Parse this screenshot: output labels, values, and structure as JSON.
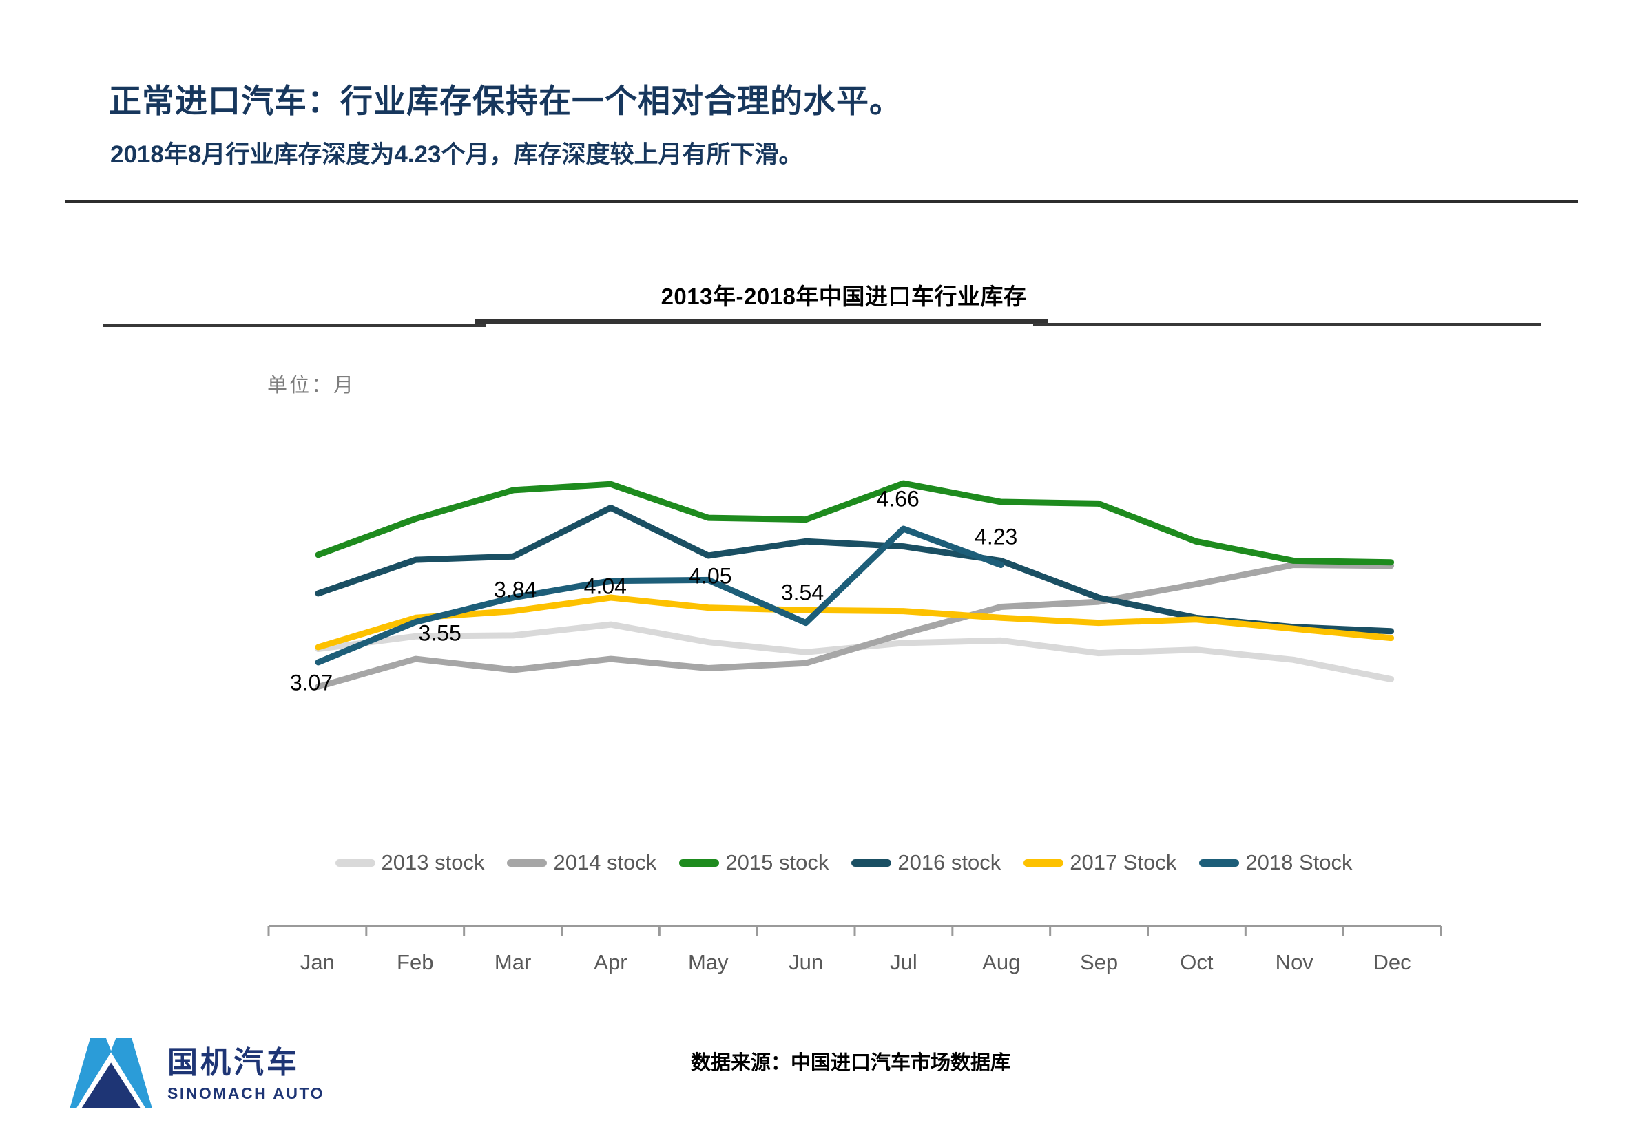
{
  "header": {
    "title": "正常进口汽车：行业库存保持在一个相对合理的水平。",
    "subtitle": "2018年8月行业库存深度为4.23个月，库存深度较上月有所下滑。"
  },
  "chart_data": {
    "type": "line",
    "title": "2013年-2018年中国进口车行业库存",
    "unit_label": "单位：月",
    "ylabel": "月",
    "ylim": [
      2.5,
      5.5
    ],
    "grid": false,
    "legend_position": "bottom",
    "categories": [
      "Jan",
      "Feb",
      "Mar",
      "Apr",
      "May",
      "Jun",
      "Jul",
      "Aug",
      "Sep",
      "Oct",
      "Nov",
      "Dec"
    ],
    "series": [
      {
        "name": "2013 stock",
        "color": "#d9d9d9",
        "values": [
          3.23,
          3.38,
          3.39,
          3.52,
          3.31,
          3.19,
          3.3,
          3.33,
          3.18,
          3.22,
          3.1,
          2.87
        ]
      },
      {
        "name": "2014 stock",
        "color": "#a6a6a6",
        "values": [
          2.78,
          3.11,
          2.98,
          3.11,
          3.0,
          3.06,
          3.41,
          3.73,
          3.79,
          4.0,
          4.23,
          4.22
        ]
      },
      {
        "name": "2015 stock",
        "color": "#1e8b1e",
        "values": [
          4.35,
          4.78,
          5.12,
          5.19,
          4.79,
          4.77,
          5.2,
          4.98,
          4.96,
          4.51,
          4.28,
          4.26
        ]
      },
      {
        "name": "2016 stock",
        "color": "#1a4f63",
        "values": [
          3.89,
          4.29,
          4.33,
          4.91,
          4.34,
          4.51,
          4.45,
          4.28,
          3.84,
          3.6,
          3.49,
          3.44
        ]
      },
      {
        "name": "2017 Stock",
        "color": "#fdc100",
        "values": [
          3.25,
          3.6,
          3.68,
          3.84,
          3.72,
          3.69,
          3.68,
          3.6,
          3.54,
          3.58,
          3.47,
          3.36
        ]
      },
      {
        "name": "2018 Stock",
        "color": "#1d5e79",
        "values": [
          3.07,
          3.55,
          3.84,
          4.04,
          4.05,
          3.54,
          4.66,
          4.23
        ]
      }
    ],
    "labeled_series": "2018 Stock",
    "data_labels": [
      "3.07",
      "3.55",
      "3.84",
      "4.04",
      "4.05",
      "3.54",
      "4.66",
      "4.23"
    ]
  },
  "footer": {
    "source": "数据来源：中国进口汽车市场数据库",
    "logo_cn": "国机汽车",
    "logo_en": "SINOMACH AUTO"
  }
}
